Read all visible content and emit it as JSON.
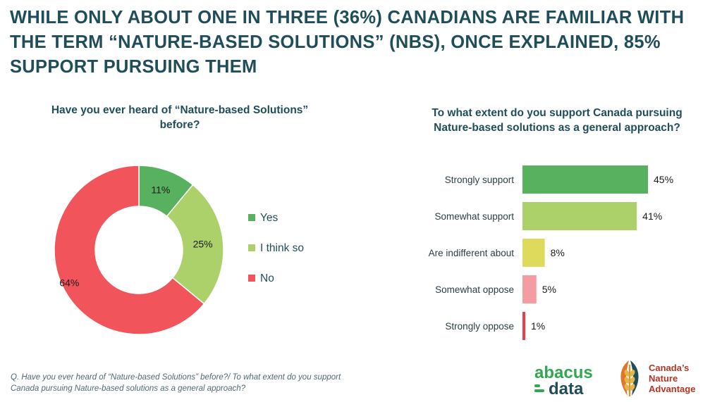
{
  "title_lines": [
    "While only about one in three (36%) Canadians are familiar with",
    "the term “Nature-based Solutions” (NBS), once explained, 85%",
    "support pursuing them"
  ],
  "chart_data": [
    {
      "type": "pie",
      "variant": "donut",
      "question_lines": [
        "Have you ever heard of “Nature-based Solutions”",
        "before?"
      ],
      "categories": [
        "Yes",
        "I think so",
        "No"
      ],
      "values": [
        11,
        25,
        64
      ],
      "data_labels": [
        "11%",
        "25%",
        "64%"
      ],
      "colors": [
        "#58b15f",
        "#acd16a",
        "#f2545b"
      ],
      "legend_position": "right"
    },
    {
      "type": "bar",
      "orientation": "horizontal",
      "question_lines": [
        "To what extent do you support Canada pursuing",
        "Nature-based solutions as a general approach?"
      ],
      "categories": [
        "Strongly support",
        "Somewhat support",
        "Are indifferent about",
        "Somewhat oppose",
        "Strongly oppose"
      ],
      "values": [
        45,
        41,
        8,
        5,
        1
      ],
      "data_labels": [
        "45%",
        "41%",
        "8%",
        "5%",
        "1%"
      ],
      "colors": [
        "#58b15f",
        "#acd16a",
        "#dedb5c",
        "#f59ca2",
        "#ee3d4a"
      ],
      "xlim": [
        0,
        45
      ]
    }
  ],
  "footnote_lines": [
    "Q. Have you ever heard of “Nature-based Solutions” before?/ To what extent do you support",
    "Canada pursuing Nature-based solutions as a general approach?"
  ],
  "logos": {
    "abacus_top": "abacus",
    "abacus_bottom": "data",
    "cna_lines": [
      "Canada’s",
      "Nature",
      "Advantage"
    ]
  },
  "colors": {
    "title": "#1f4e5a",
    "abacus_green": "#2fa84f",
    "abacus_dark": "#1f4e5a",
    "cna_red": "#b5341f"
  }
}
